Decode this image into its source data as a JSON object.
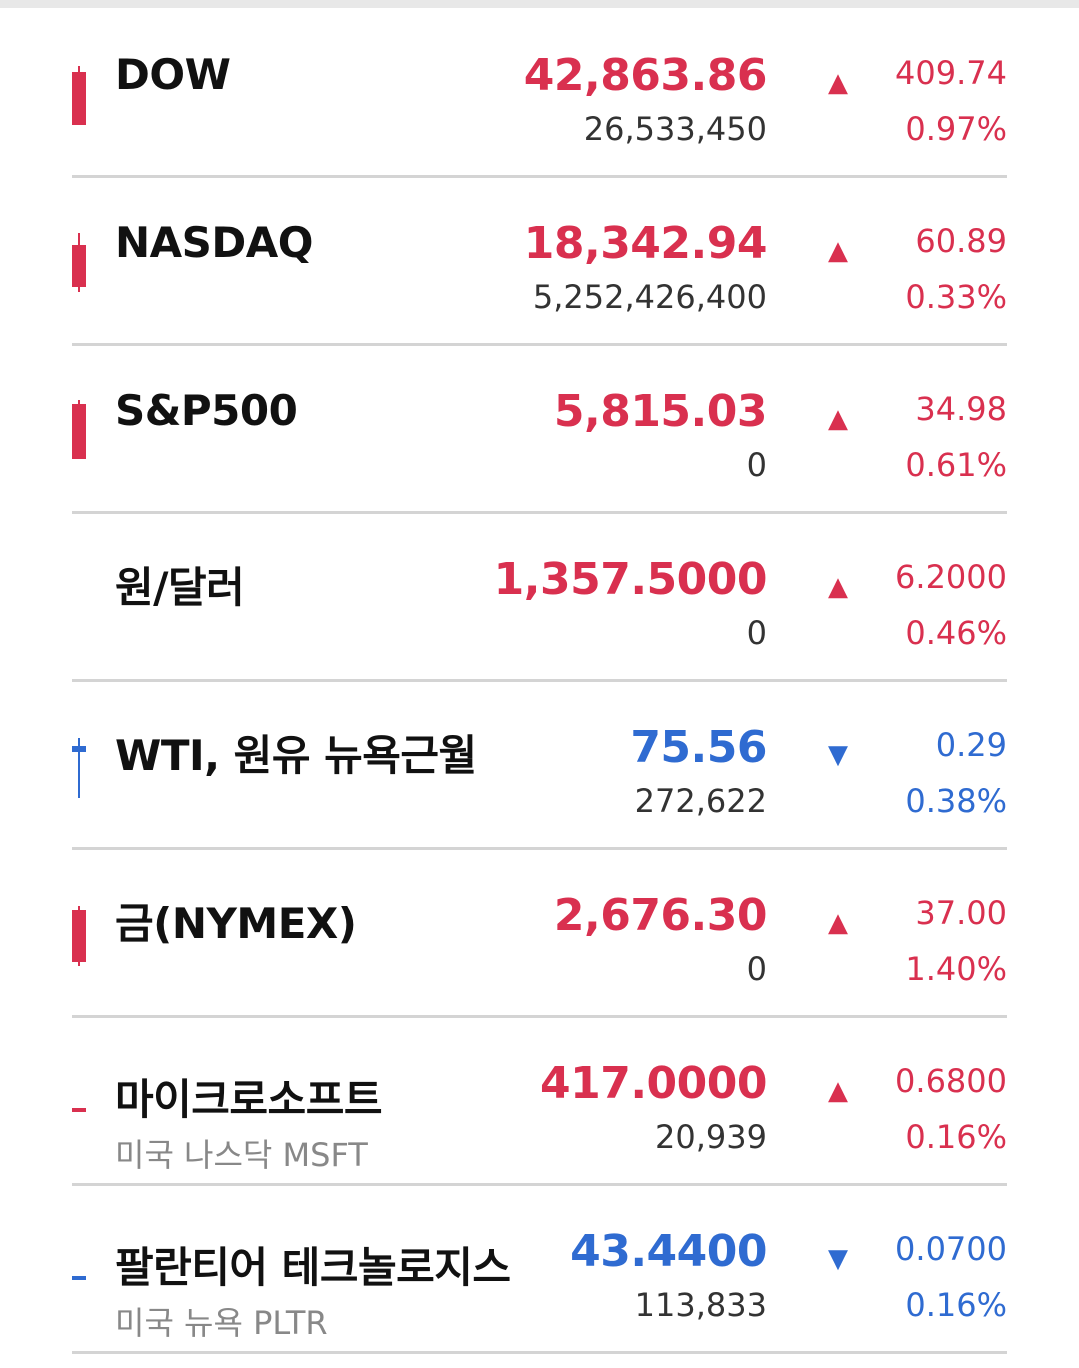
{
  "colors": {
    "up": "#d9304f",
    "down": "#2f6bd1"
  },
  "rows": [
    {
      "name": "DOW",
      "sub": "",
      "price": "42,863.86",
      "volume": "26,533,450",
      "direction": "up",
      "arrow": "▲",
      "change": "409.74",
      "percent": "0.97%"
    },
    {
      "name": "NASDAQ",
      "sub": "",
      "price": "18,342.94",
      "volume": "5,252,426,400",
      "direction": "up",
      "arrow": "▲",
      "change": "60.89",
      "percent": "0.33%"
    },
    {
      "name": "S&P500",
      "sub": "",
      "price": "5,815.03",
      "volume": "0",
      "direction": "up",
      "arrow": "▲",
      "change": "34.98",
      "percent": "0.61%"
    },
    {
      "name": "원/달러",
      "sub": "",
      "price": "1,357.5000",
      "volume": "0",
      "direction": "up",
      "arrow": "▲",
      "change": "6.2000",
      "percent": "0.46%"
    },
    {
      "name": "WTI, 원유 뉴욕근월",
      "sub": "",
      "price": "75.56",
      "volume": "272,622",
      "direction": "down",
      "arrow": "▼",
      "change": "0.29",
      "percent": "0.38%"
    },
    {
      "name": "금(NYMEX)",
      "sub": "",
      "price": "2,676.30",
      "volume": "0",
      "direction": "up",
      "arrow": "▲",
      "change": "37.00",
      "percent": "1.40%"
    },
    {
      "name": "마이크로소프트",
      "sub": "미국 나스닥 MSFT",
      "price": "417.0000",
      "volume": "20,939",
      "direction": "up",
      "arrow": "▲",
      "change": "0.6800",
      "percent": "0.16%"
    },
    {
      "name": "팔란티어 테크놀로지스",
      "sub": "미국 뉴욕 PLTR",
      "price": "43.4400",
      "volume": "113,833",
      "direction": "down",
      "arrow": "▼",
      "change": "0.0700",
      "percent": "0.16%"
    }
  ]
}
